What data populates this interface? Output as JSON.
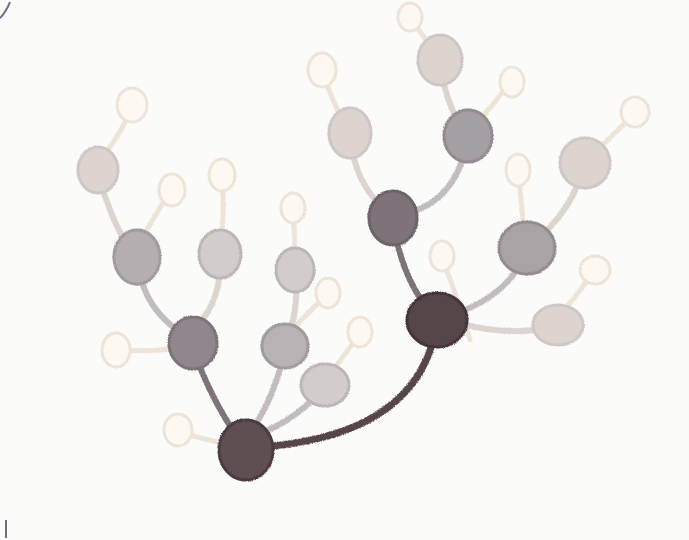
{
  "diagram": {
    "kind": "branching tree",
    "style": "colored-pencil sketch",
    "levels": 6,
    "colors": {
      "paper": "#fbfbfa",
      "level_0": "#56454a",
      "level_1": "#7d7378",
      "level_2": "#a49fa3",
      "level_3": "#c3bcbf",
      "level_4": "#ddd3cf",
      "level_5": "#eee3d7"
    },
    "nodes": [
      {
        "id": "root-left",
        "level": 0
      },
      {
        "id": "root-right",
        "level": 0
      },
      {
        "id": "upper-right-hub",
        "level": 1
      },
      {
        "id": "left-hub",
        "level": 1
      },
      {
        "id": "top-right-child",
        "level": 2
      },
      {
        "id": "right-child",
        "level": 2
      },
      {
        "id": "left-mid-child",
        "level": 2
      },
      {
        "id": "mid-child",
        "level": 2
      },
      {
        "id": "low-right-child",
        "level": 3
      },
      {
        "id": "top-center-child",
        "level": 3
      },
      {
        "id": "far-right-child",
        "level": 3
      },
      {
        "id": "left-top-child",
        "level": 3
      },
      {
        "id": "center-child",
        "level": 3
      },
      {
        "id": "lower-center-child",
        "level": 3
      },
      {
        "id": "mid-top-child",
        "level": 3
      },
      {
        "id": "far-left-leaf",
        "level": 4
      },
      {
        "id": "bottom-left-leaf",
        "level": 5
      },
      {
        "id": "small-leaves",
        "level": 5
      }
    ]
  }
}
